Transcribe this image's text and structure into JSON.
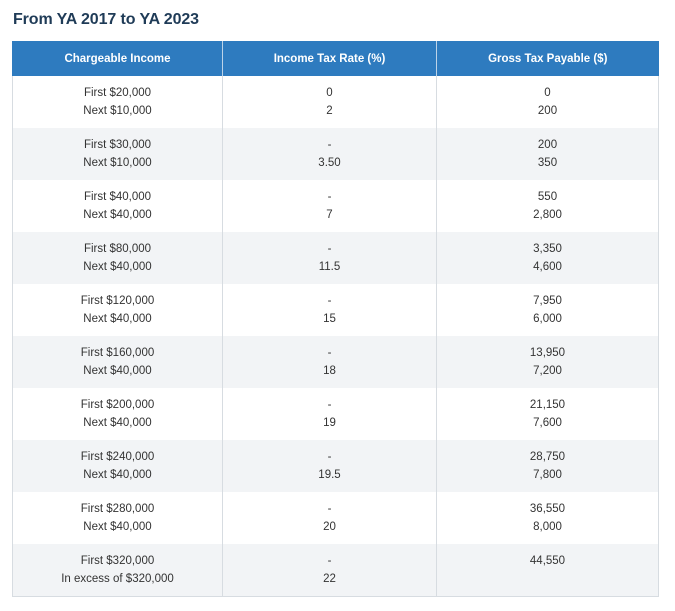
{
  "title": "From YA 2017 to YA 2023",
  "table": {
    "headers": [
      "Chargeable Income",
      "Income Tax Rate (%)",
      "Gross Tax Payable ($)"
    ],
    "rows": [
      {
        "income": [
          "First $20,000",
          "Next $10,000"
        ],
        "rate": [
          "0",
          "2"
        ],
        "tax": [
          "0",
          "200"
        ]
      },
      {
        "income": [
          "First $30,000",
          "Next $10,000"
        ],
        "rate": [
          "-",
          "3.50"
        ],
        "tax": [
          "200",
          "350"
        ]
      },
      {
        "income": [
          "First $40,000",
          "Next $40,000"
        ],
        "rate": [
          "-",
          "7"
        ],
        "tax": [
          "550",
          "2,800"
        ]
      },
      {
        "income": [
          "First $80,000",
          "Next $40,000"
        ],
        "rate": [
          "-",
          "11.5"
        ],
        "tax": [
          "3,350",
          "4,600"
        ]
      },
      {
        "income": [
          "First $120,000",
          "Next $40,000"
        ],
        "rate": [
          "-",
          "15"
        ],
        "tax": [
          "7,950",
          "6,000"
        ]
      },
      {
        "income": [
          "First $160,000",
          "Next $40,000"
        ],
        "rate": [
          "-",
          "18"
        ],
        "tax": [
          "13,950",
          "7,200"
        ]
      },
      {
        "income": [
          "First $200,000",
          "Next $40,000"
        ],
        "rate": [
          "-",
          "19"
        ],
        "tax": [
          "21,150",
          "7,600"
        ]
      },
      {
        "income": [
          "First $240,000",
          "Next $40,000"
        ],
        "rate": [
          "-",
          "19.5"
        ],
        "tax": [
          "28,750",
          "7,800"
        ]
      },
      {
        "income": [
          "First $280,000",
          "Next $40,000"
        ],
        "rate": [
          "-",
          "20"
        ],
        "tax": [
          "36,550",
          "8,000"
        ]
      },
      {
        "income": [
          "First $320,000",
          "In excess of $320,000"
        ],
        "rate": [
          "-",
          "22"
        ],
        "tax": [
          "44,550",
          ""
        ]
      }
    ]
  },
  "colors": {
    "header_bg": "#2e7bbf",
    "title_text": "#1f3b57",
    "stripe_bg": "#f2f4f6"
  }
}
